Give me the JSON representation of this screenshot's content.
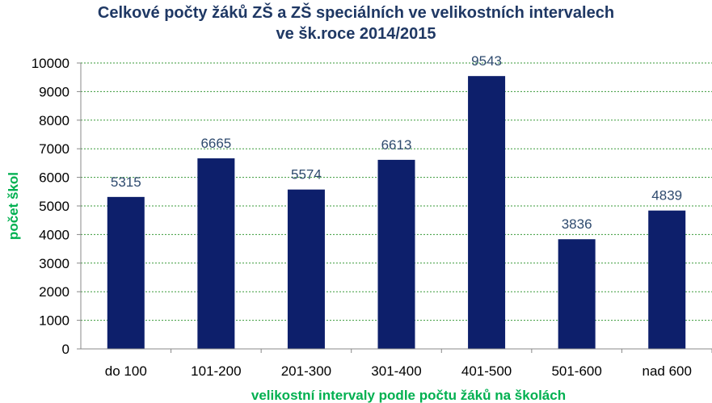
{
  "chart_data": {
    "type": "bar",
    "title_lines": [
      "Celkové počty žáků ZŠ a ZŠ speciálních ve velikostních intervalech",
      "ve šk.roce 2014/2015"
    ],
    "categories": [
      "do 100",
      "101-200",
      "201-300",
      "301-400",
      "401-500",
      "501-600",
      "nad 600"
    ],
    "values": [
      5315,
      6665,
      5574,
      6613,
      9543,
      3836,
      4839
    ],
    "data_labels": [
      "5315",
      "6665",
      "5574",
      "6613",
      "9543",
      "3836",
      "4839"
    ],
    "xlabel": "velikostní intervaly podle počtu žáků na školách",
    "ylabel": "počet škol",
    "ylim": [
      0,
      10000
    ],
    "yticks": [
      "0",
      "1000",
      "2000",
      "3000",
      "4000",
      "5000",
      "6000",
      "7000",
      "8000",
      "9000",
      "10000"
    ],
    "grid": "horizontal dashed",
    "legend": "none"
  },
  "colors": {
    "title": "#1f3864",
    "bar": "#0d1f6b",
    "axis_title": "#00b050",
    "gridline": "#3a9a3a",
    "tick_text": "#000000",
    "data_label": "#2e4a6e"
  }
}
